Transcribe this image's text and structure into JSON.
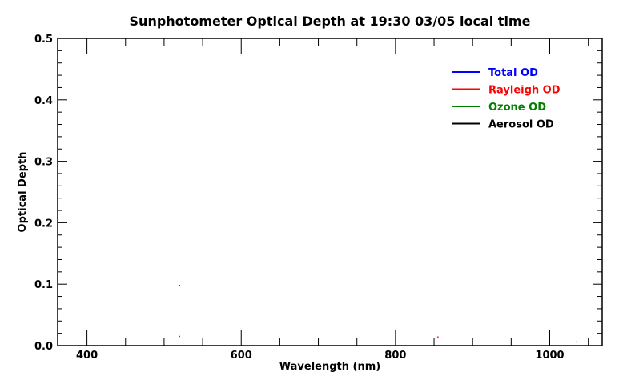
{
  "chart_data": {
    "type": "line",
    "title": "Sunphotometer Optical Depth at 19:30  03/05 local time",
    "xlabel": "Wavelength (nm)",
    "ylabel": "Optical Depth",
    "xlim": [
      362,
      1068
    ],
    "ylim": [
      0.0,
      0.5
    ],
    "x_ticks": [
      400,
      600,
      800,
      1000
    ],
    "x_tick_labels": [
      "400",
      "600",
      "800",
      "1000"
    ],
    "y_ticks": [
      0.0,
      0.1,
      0.2,
      0.3,
      0.4,
      0.5
    ],
    "y_tick_labels": [
      "0.0",
      "0.1",
      "0.2",
      "0.3",
      "0.4",
      "0.5"
    ],
    "grid": false,
    "legend_position": "top-right",
    "series": [
      {
        "name": "Total OD",
        "color": "#0000ff",
        "points": []
      },
      {
        "name": "Rayleigh OD",
        "color": "#ff0000",
        "points": [
          [
            520,
            0.098
          ],
          [
            520,
            0.015
          ],
          [
            855,
            0.014
          ],
          [
            1035,
            0.006
          ]
        ]
      },
      {
        "name": "Ozone OD",
        "color": "#008000",
        "points": []
      },
      {
        "name": "Aerosol OD",
        "color": "#000000",
        "points": []
      }
    ]
  }
}
